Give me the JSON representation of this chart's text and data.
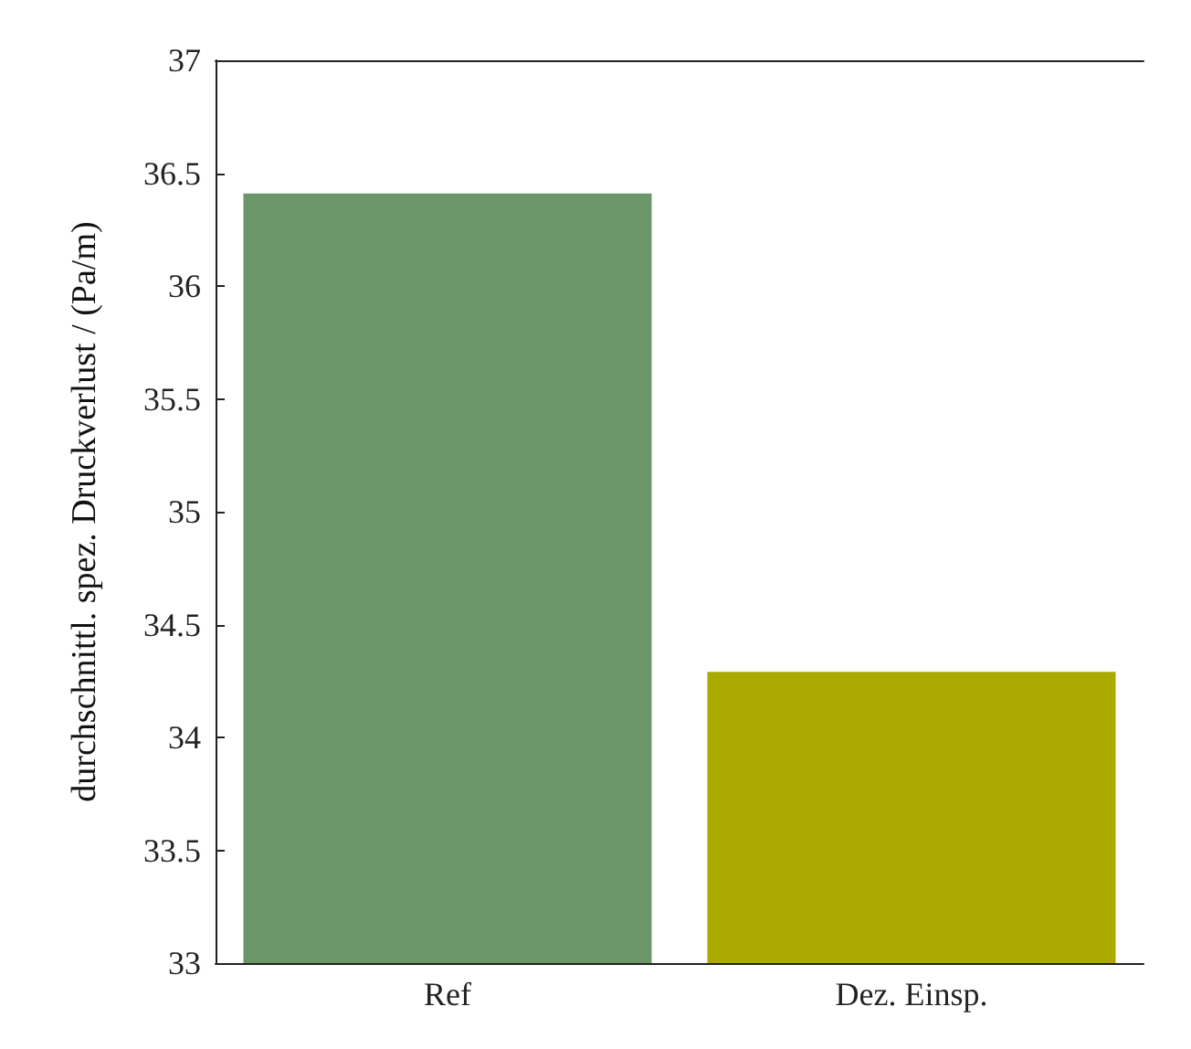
{
  "chart_data": {
    "type": "bar",
    "ylabel": "durchschnittl. spez. Druckverlust / (Pa/m)",
    "categories": [
      "Ref",
      "Dez. Einsp."
    ],
    "values": [
      36.41,
      34.29
    ],
    "colors": [
      "#6a9669",
      "#aaaa00"
    ],
    "ylim": [
      33,
      37
    ],
    "yticks": [
      33,
      33.5,
      34,
      34.5,
      35,
      35.5,
      36,
      36.5,
      37
    ],
    "grid": false
  }
}
